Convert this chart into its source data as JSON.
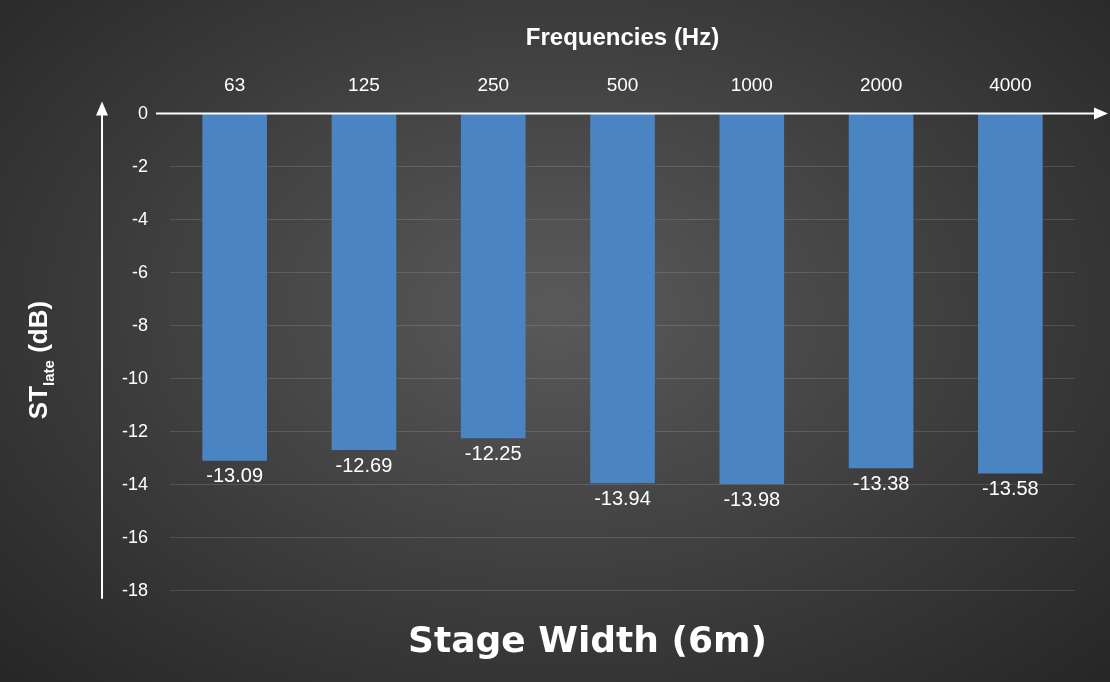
{
  "chart_data": {
    "type": "bar",
    "title": "Stage Width (6m)",
    "xlabel": "Frequencies (Hz)",
    "ylabel": "ST$_{late}$ (dB)",
    "categories": [
      "63",
      "125",
      "250",
      "500",
      "1000",
      "2000",
      "4000"
    ],
    "values": [
      -13.09,
      -12.69,
      -12.25,
      -13.94,
      -13.98,
      -13.38,
      -13.58
    ],
    "color": "#4a84c2",
    "ylim": [
      -18,
      0
    ],
    "yticks": [
      0,
      -2,
      -4,
      -6,
      -8,
      -10,
      -12,
      -14,
      -16,
      -18
    ],
    "grid": "y",
    "data_labels": true,
    "legend": false
  }
}
